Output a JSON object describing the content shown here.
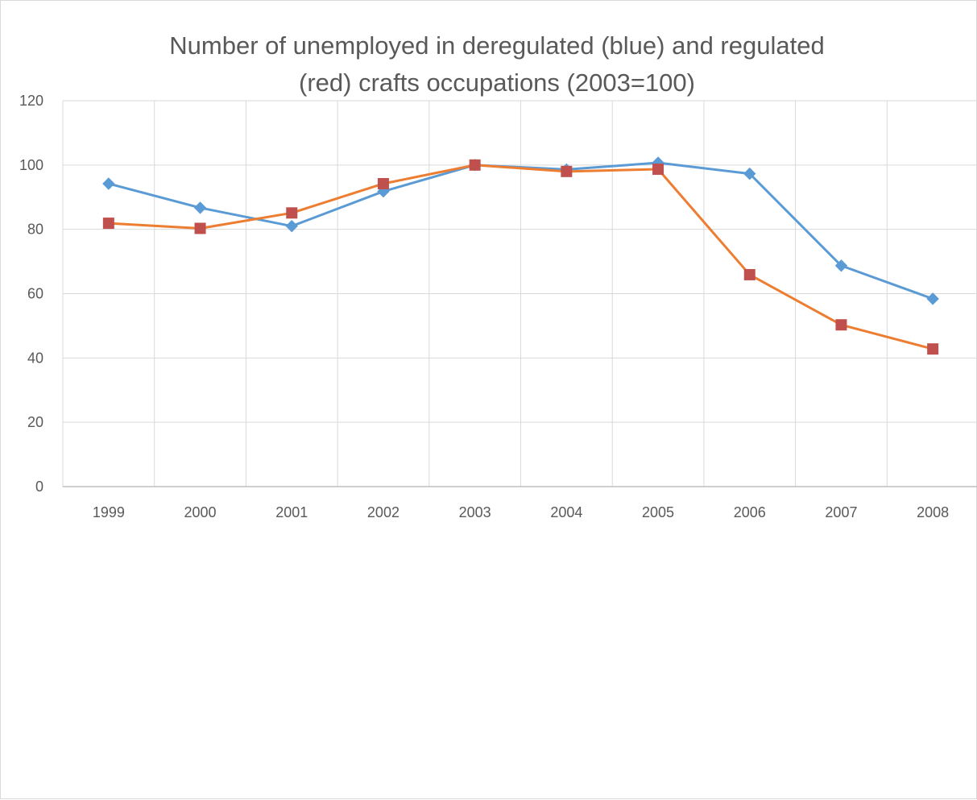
{
  "chart_data": {
    "type": "line",
    "title_lines": [
      "Number of unemployed in deregulated (blue) and regulated",
      "(red) crafts occupations (2003=100)"
    ],
    "xlabel": "",
    "ylabel": "",
    "categories": [
      "1999",
      "2000",
      "2001",
      "2002",
      "2003",
      "2004",
      "2005",
      "2006",
      "2007",
      "2008"
    ],
    "ylim": [
      0,
      120
    ],
    "yticks": [
      0,
      20,
      40,
      60,
      80,
      100,
      120
    ],
    "grid": true,
    "legend": "none",
    "series": [
      {
        "color": "#5b9bd5",
        "marker": "diamond",
        "values": [
          94.2,
          86.7,
          81.0,
          91.8,
          100.0,
          98.6,
          100.7,
          97.3,
          68.7,
          58.4
        ]
      },
      {
        "color": "#ed7d31",
        "marker_color": "#c0504d",
        "marker": "square",
        "values": [
          81.9,
          80.3,
          85.1,
          94.2,
          100.0,
          98.0,
          98.7,
          65.9,
          50.3,
          42.8
        ]
      }
    ]
  }
}
